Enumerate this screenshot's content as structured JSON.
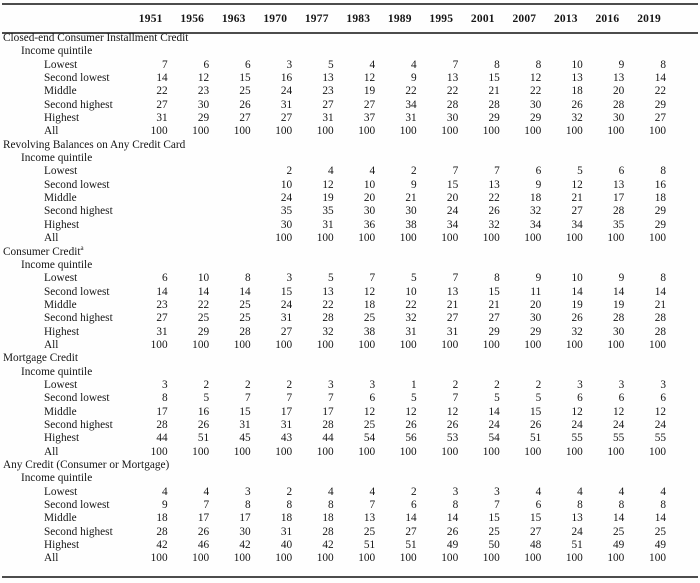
{
  "table": {
    "years": [
      "1951",
      "1956",
      "1963",
      "1970",
      "1977",
      "1983",
      "1989",
      "1995",
      "2001",
      "2007",
      "2013",
      "2016",
      "2019"
    ],
    "subtitle_label": "Income quintile",
    "sections": [
      {
        "title": "Closed-end Consumer Installment Credit",
        "subtitle": "Income quintile",
        "rows": [
          {
            "label": "Lowest",
            "values": [
              "7",
              "6",
              "6",
              "3",
              "5",
              "4",
              "4",
              "7",
              "8",
              "8",
              "10",
              "9",
              "8"
            ]
          },
          {
            "label": "Second lowest",
            "values": [
              "14",
              "12",
              "15",
              "16",
              "13",
              "12",
              "9",
              "13",
              "15",
              "12",
              "13",
              "13",
              "14"
            ]
          },
          {
            "label": "Middle",
            "values": [
              "22",
              "23",
              "25",
              "24",
              "23",
              "19",
              "22",
              "22",
              "21",
              "22",
              "18",
              "20",
              "22"
            ]
          },
          {
            "label": "Second highest",
            "values": [
              "27",
              "30",
              "26",
              "31",
              "27",
              "27",
              "34",
              "28",
              "28",
              "30",
              "26",
              "28",
              "29"
            ]
          },
          {
            "label": "Highest",
            "values": [
              "31",
              "29",
              "27",
              "27",
              "31",
              "37",
              "31",
              "30",
              "29",
              "29",
              "32",
              "30",
              "27"
            ]
          },
          {
            "label": "All",
            "values": [
              "100",
              "100",
              "100",
              "100",
              "100",
              "100",
              "100",
              "100",
              "100",
              "100",
              "100",
              "100",
              "100"
            ]
          }
        ]
      },
      {
        "title": "Revolving Balances on Any Credit Card",
        "subtitle": "Income quintile",
        "rows": [
          {
            "label": "Lowest",
            "values": [
              "",
              "",
              "",
              "2",
              "4",
              "4",
              "2",
              "7",
              "7",
              "6",
              "5",
              "6",
              "8"
            ]
          },
          {
            "label": "Second lowest",
            "values": [
              "",
              "",
              "",
              "10",
              "12",
              "10",
              "9",
              "15",
              "13",
              "9",
              "12",
              "13",
              "16"
            ]
          },
          {
            "label": "Middle",
            "values": [
              "",
              "",
              "",
              "24",
              "19",
              "20",
              "21",
              "20",
              "22",
              "18",
              "21",
              "17",
              "18"
            ]
          },
          {
            "label": "Second highest",
            "values": [
              "",
              "",
              "",
              "35",
              "35",
              "30",
              "30",
              "24",
              "26",
              "32",
              "27",
              "28",
              "29"
            ]
          },
          {
            "label": "Highest",
            "values": [
              "",
              "",
              "",
              "30",
              "31",
              "36",
              "38",
              "34",
              "32",
              "34",
              "34",
              "35",
              "29"
            ]
          },
          {
            "label": "All",
            "values": [
              "",
              "",
              "",
              "100",
              "100",
              "100",
              "100",
              "100",
              "100",
              "100",
              "100",
              "100",
              "100"
            ]
          }
        ]
      },
      {
        "title": "Consumer Credit",
        "title_sup": "a",
        "subtitle": "Income quintile",
        "rows": [
          {
            "label": "Lowest",
            "values": [
              "6",
              "10",
              "8",
              "3",
              "5",
              "7",
              "5",
              "7",
              "8",
              "9",
              "10",
              "9",
              "8"
            ]
          },
          {
            "label": "Second lowest",
            "values": [
              "14",
              "14",
              "14",
              "15",
              "13",
              "12",
              "10",
              "13",
              "15",
              "11",
              "14",
              "14",
              "14"
            ]
          },
          {
            "label": "Middle",
            "values": [
              "23",
              "22",
              "25",
              "24",
              "22",
              "18",
              "22",
              "21",
              "21",
              "20",
              "19",
              "19",
              "21"
            ]
          },
          {
            "label": "Second highest",
            "values": [
              "27",
              "25",
              "25",
              "31",
              "28",
              "25",
              "32",
              "27",
              "27",
              "30",
              "26",
              "28",
              "28"
            ]
          },
          {
            "label": "Highest",
            "values": [
              "31",
              "29",
              "28",
              "27",
              "32",
              "38",
              "31",
              "31",
              "29",
              "29",
              "32",
              "30",
              "28"
            ]
          },
          {
            "label": "All",
            "values": [
              "100",
              "100",
              "100",
              "100",
              "100",
              "100",
              "100",
              "100",
              "100",
              "100",
              "100",
              "100",
              "100"
            ]
          }
        ]
      },
      {
        "title": "Mortgage Credit",
        "subtitle": "Income quintile",
        "rows": [
          {
            "label": "Lowest",
            "values": [
              "3",
              "2",
              "2",
              "2",
              "3",
              "3",
              "1",
              "2",
              "2",
              "2",
              "3",
              "3",
              "3"
            ]
          },
          {
            "label": "Second lowest",
            "values": [
              "8",
              "5",
              "7",
              "7",
              "7",
              "6",
              "5",
              "7",
              "5",
              "5",
              "6",
              "6",
              "6"
            ]
          },
          {
            "label": "Middle",
            "values": [
              "17",
              "16",
              "15",
              "17",
              "17",
              "12",
              "12",
              "12",
              "14",
              "15",
              "12",
              "12",
              "12"
            ]
          },
          {
            "label": "Second highest",
            "values": [
              "28",
              "26",
              "31",
              "31",
              "28",
              "25",
              "26",
              "26",
              "24",
              "26",
              "24",
              "24",
              "24"
            ]
          },
          {
            "label": "Highest",
            "values": [
              "44",
              "51",
              "45",
              "43",
              "44",
              "54",
              "56",
              "53",
              "54",
              "51",
              "55",
              "55",
              "55"
            ]
          },
          {
            "label": "All",
            "values": [
              "100",
              "100",
              "100",
              "100",
              "100",
              "100",
              "100",
              "100",
              "100",
              "100",
              "100",
              "100",
              "100"
            ]
          }
        ]
      },
      {
        "title": "Any Credit (Consumer or Mortgage)",
        "subtitle": "Income quintile",
        "rows": [
          {
            "label": "Lowest",
            "values": [
              "4",
              "4",
              "3",
              "2",
              "4",
              "4",
              "2",
              "3",
              "3",
              "4",
              "4",
              "4",
              "4"
            ]
          },
          {
            "label": "Second lowest",
            "values": [
              "9",
              "7",
              "8",
              "8",
              "8",
              "7",
              "6",
              "8",
              "7",
              "6",
              "8",
              "8",
              "8"
            ]
          },
          {
            "label": "Middle",
            "values": [
              "18",
              "17",
              "17",
              "18",
              "18",
              "13",
              "14",
              "14",
              "15",
              "15",
              "13",
              "14",
              "14"
            ]
          },
          {
            "label": "Second highest",
            "values": [
              "28",
              "26",
              "30",
              "31",
              "28",
              "25",
              "27",
              "26",
              "25",
              "27",
              "24",
              "25",
              "25"
            ]
          },
          {
            "label": "Highest",
            "values": [
              "42",
              "46",
              "42",
              "40",
              "42",
              "51",
              "51",
              "49",
              "50",
              "48",
              "51",
              "49",
              "49"
            ]
          },
          {
            "label": "All",
            "values": [
              "100",
              "100",
              "100",
              "100",
              "100",
              "100",
              "100",
              "100",
              "100",
              "100",
              "100",
              "100",
              "100"
            ]
          }
        ]
      }
    ]
  }
}
